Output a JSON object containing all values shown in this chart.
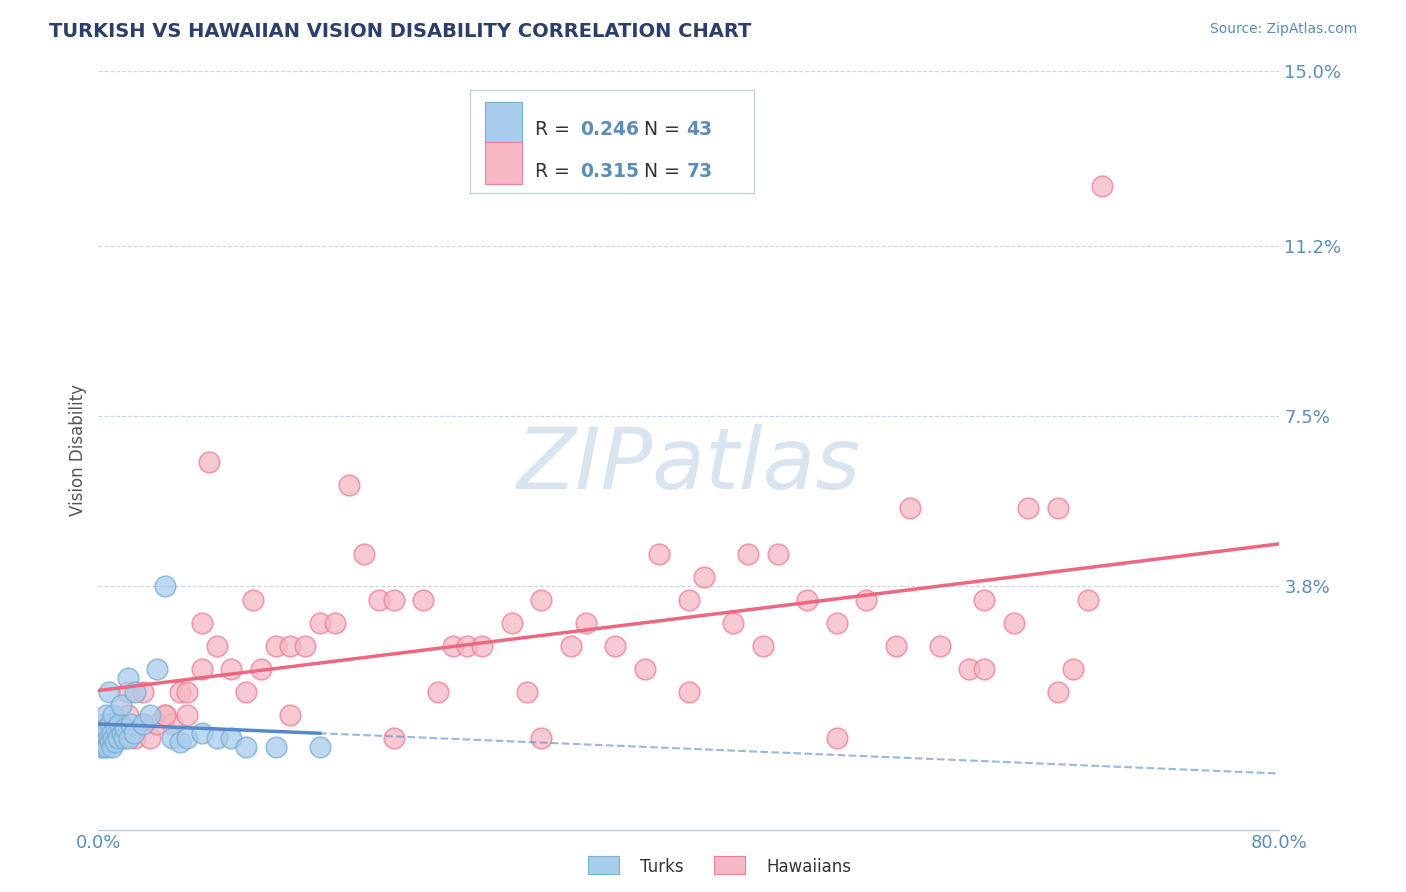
{
  "title": "TURKISH VS HAWAIIAN VISION DISABILITY CORRELATION CHART",
  "source": "Source: ZipAtlas.com",
  "ylabel": "Vision Disability",
  "ytick_labels": [
    "3.8%",
    "7.5%",
    "11.2%",
    "15.0%"
  ],
  "ytick_values": [
    3.8,
    7.5,
    11.2,
    15.0
  ],
  "xlim": [
    0.0,
    80.0
  ],
  "ylim": [
    -1.5,
    15.0
  ],
  "turks_R": 0.246,
  "turks_N": 43,
  "hawaiians_R": 0.315,
  "hawaiians_N": 73,
  "turks_color": "#A8CCEC",
  "hawaiians_color": "#F5B8C4",
  "turks_edge_color": "#7AAFD4",
  "hawaiians_edge_color": "#EE8099",
  "turks_line_color": "#5588CC",
  "hawaiians_line_color": "#EE6680",
  "grid_color": "#C8D4E8",
  "title_color": "#2C3E6B",
  "axis_label_color": "#5B8DB8",
  "legend_text_color": "#333333",
  "background_color": "#FFFFFF",
  "watermark_color": "#D8E4F0",
  "turks_x": [
    0.2,
    0.3,
    0.3,
    0.4,
    0.4,
    0.5,
    0.5,
    0.6,
    0.6,
    0.7,
    0.7,
    0.8,
    0.8,
    0.9,
    0.9,
    1.0,
    1.0,
    1.1,
    1.2,
    1.3,
    1.4,
    1.5,
    1.6,
    1.7,
    1.8,
    2.0,
    2.1,
    2.2,
    2.4,
    2.5,
    3.0,
    3.5,
    4.0,
    4.5,
    5.0,
    5.5,
    6.0,
    7.0,
    8.0,
    9.0,
    10.0,
    12.0,
    15.0
  ],
  "turks_y": [
    0.3,
    0.5,
    0.8,
    0.3,
    0.6,
    0.4,
    1.0,
    0.3,
    0.7,
    0.5,
    1.5,
    0.4,
    0.8,
    0.3,
    0.6,
    1.0,
    0.5,
    0.4,
    0.7,
    0.5,
    0.8,
    1.2,
    0.6,
    0.5,
    0.7,
    1.8,
    0.5,
    0.8,
    0.6,
    1.5,
    0.8,
    1.0,
    2.0,
    3.8,
    0.5,
    0.4,
    0.5,
    0.6,
    0.5,
    0.5,
    0.3,
    0.3,
    0.3
  ],
  "hawaiians_x": [
    0.5,
    1.0,
    1.5,
    2.0,
    2.5,
    3.0,
    3.5,
    4.0,
    4.5,
    5.0,
    5.5,
    6.0,
    7.0,
    7.5,
    8.0,
    9.0,
    10.0,
    10.5,
    11.0,
    12.0,
    13.0,
    14.0,
    15.0,
    16.0,
    17.0,
    18.0,
    19.0,
    20.0,
    22.0,
    23.0,
    24.0,
    25.0,
    26.0,
    28.0,
    29.0,
    30.0,
    32.0,
    33.0,
    35.0,
    37.0,
    38.0,
    40.0,
    41.0,
    43.0,
    44.0,
    46.0,
    48.0,
    50.0,
    52.0,
    54.0,
    55.0,
    57.0,
    59.0,
    60.0,
    62.0,
    63.0,
    65.0,
    66.0,
    67.0,
    68.0,
    2.0,
    4.5,
    7.0,
    13.0,
    20.0,
    30.0,
    40.0,
    50.0,
    60.0,
    65.0,
    3.0,
    6.0,
    45.0
  ],
  "hawaiians_y": [
    0.5,
    0.8,
    0.5,
    1.0,
    0.5,
    0.8,
    0.5,
    0.8,
    1.0,
    0.8,
    1.5,
    1.5,
    2.0,
    6.5,
    2.5,
    2.0,
    1.5,
    3.5,
    2.0,
    2.5,
    2.5,
    2.5,
    3.0,
    3.0,
    6.0,
    4.5,
    3.5,
    3.5,
    3.5,
    1.5,
    2.5,
    2.5,
    2.5,
    3.0,
    1.5,
    3.5,
    2.5,
    3.0,
    2.5,
    2.0,
    4.5,
    3.5,
    4.0,
    3.0,
    4.5,
    4.5,
    3.5,
    3.0,
    3.5,
    2.5,
    5.5,
    2.5,
    2.0,
    3.5,
    3.0,
    5.5,
    1.5,
    2.0,
    3.5,
    12.5,
    1.5,
    1.0,
    3.0,
    1.0,
    0.5,
    0.5,
    1.5,
    0.5,
    2.0,
    5.5,
    1.5,
    1.0,
    2.5
  ]
}
